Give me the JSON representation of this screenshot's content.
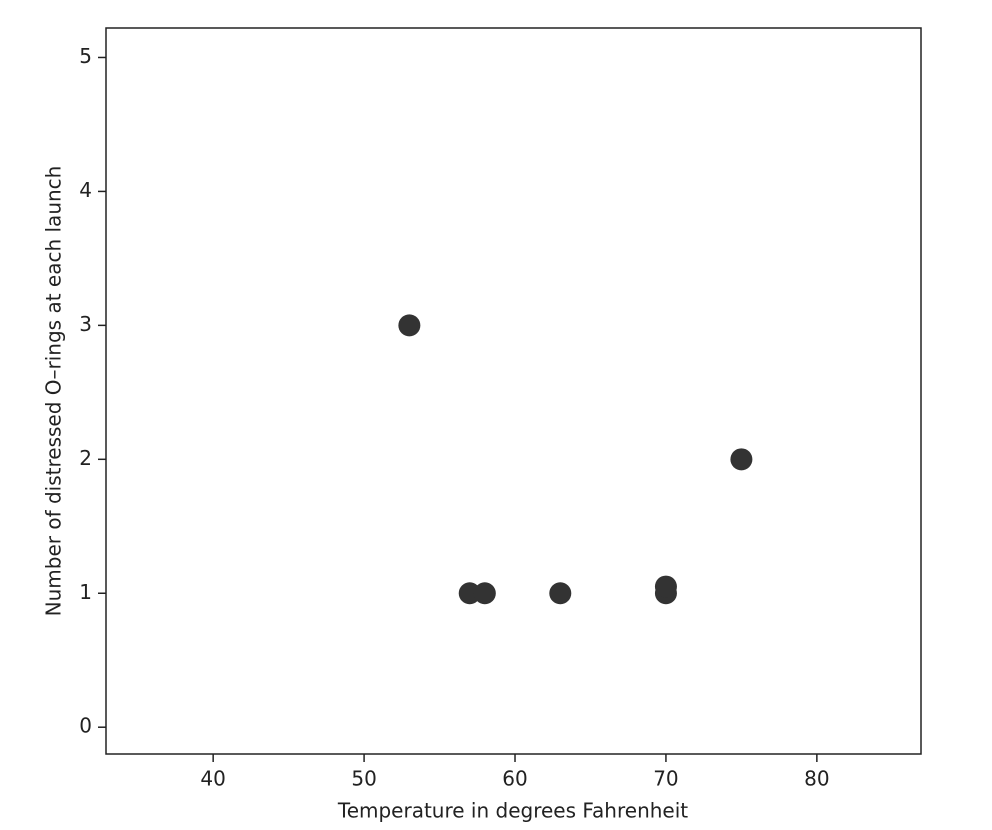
{
  "chart_data": {
    "type": "scatter",
    "x_label": "Temperature in degrees Fahrenheit",
    "y_label": "Number of distressed O–rings at each launch",
    "x": [
      53,
      57,
      58,
      63,
      70,
      70,
      75
    ],
    "values": [
      3,
      1,
      1,
      1,
      1,
      1.05,
      2
    ],
    "color": "#333333",
    "xlim": [
      32.9,
      86.9
    ],
    "xticks": [
      40,
      50,
      60,
      70,
      80
    ],
    "ylim": [
      -0.2,
      5.22
    ],
    "yticks": [
      0,
      1,
      2,
      3,
      4,
      5
    ]
  }
}
